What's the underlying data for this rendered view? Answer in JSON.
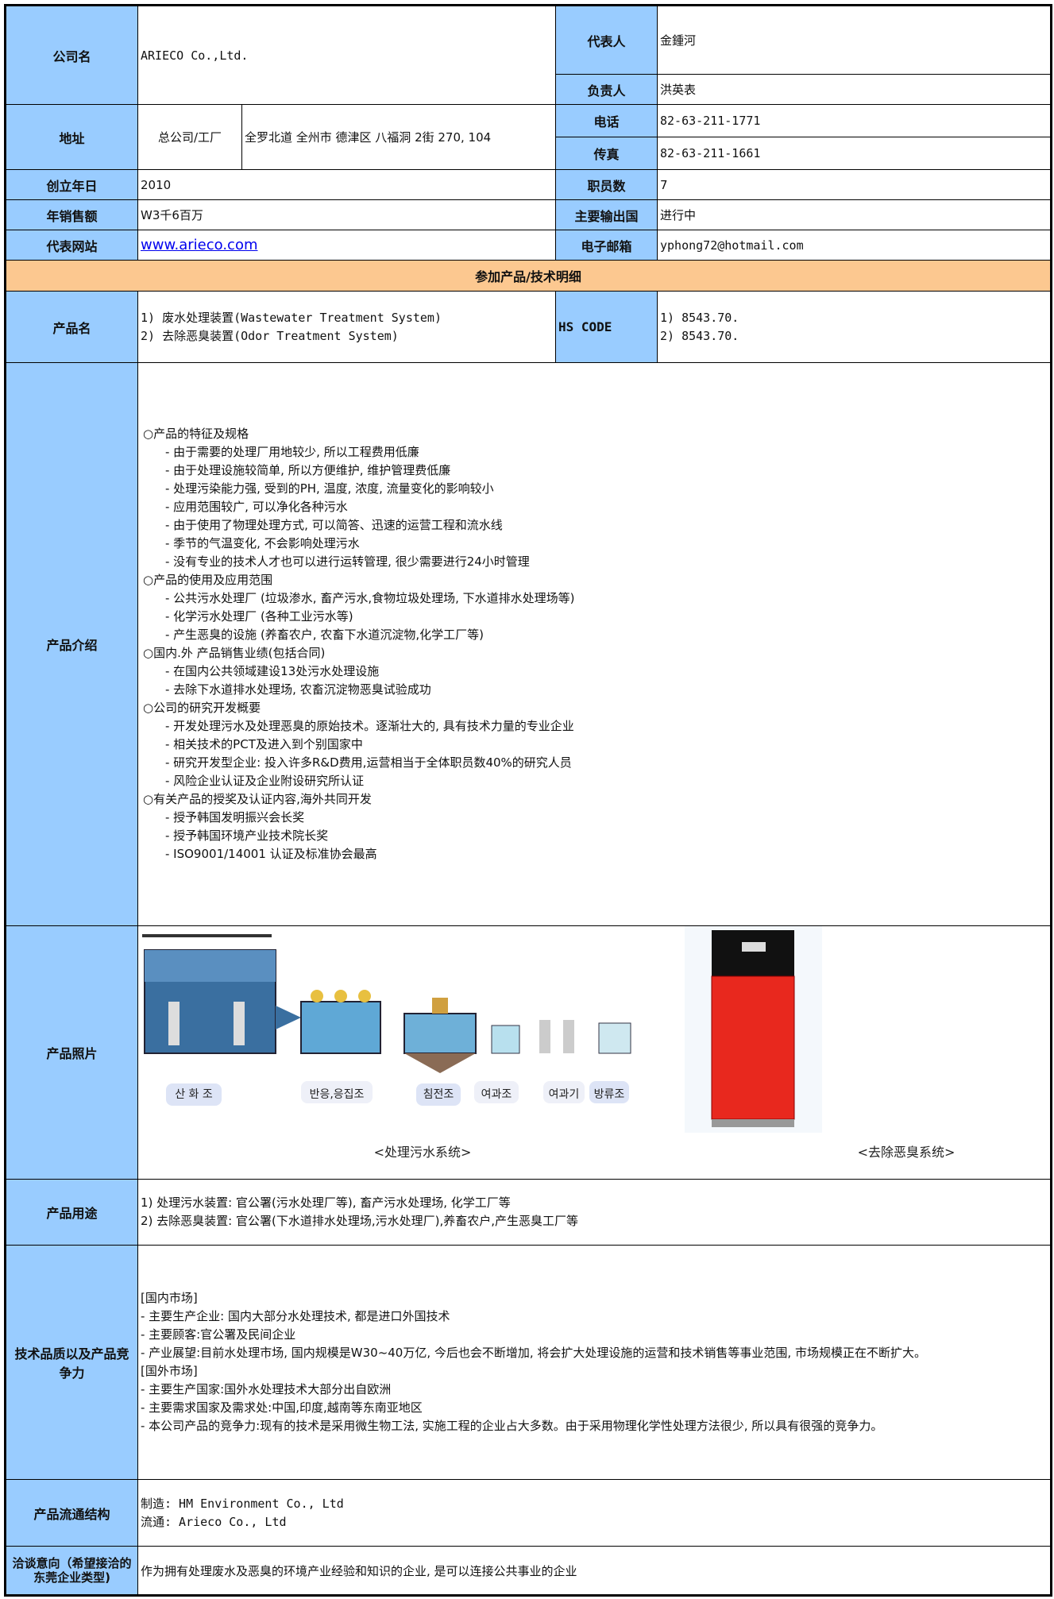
{
  "labels": {
    "company_name": "公司名",
    "representative": "代表人",
    "manager": "负责人",
    "address": "地址",
    "phone": "电话",
    "fax": "传真",
    "founded": "创立年日",
    "employees": "职员数",
    "sales": "年销售额",
    "export": "主要输出国",
    "website": "代表网站",
    "email": "电子邮箱",
    "section": "参加产品/技术明细",
    "product_name": "产品名",
    "hs_code": "HS CODE",
    "intro": "产品介绍",
    "photos": "产品照片",
    "usage": "产品用途",
    "competitiveness": "技术品质以及产品竞争力",
    "distribution": "产品流通结构",
    "intent": "洽谈意向（希望接洽的东莞企业类型)"
  },
  "values": {
    "company_name": "ARIECO Co.,Ltd.",
    "representative": "金鍾河",
    "manager": "洪英表",
    "address_type": "总公司/工厂",
    "address": "全罗北道 全州市 德津区 八福洞 2街 270, 104",
    "phone": "82-63-211-1771",
    "fax": "82-63-211-1661",
    "founded": "2010",
    "employees": "7",
    "sales": "W3千6百万",
    "export": "进行中",
    "website": "www.arieco.com",
    "email": "yphong72@hotmail.com",
    "product_names": [
      "1) 废水处理装置(Wastewater Treatment System)",
      "2) 去除恶臭装置(Odor Treatment System)"
    ],
    "hs_codes": [
      "1) 8543.70.",
      "2) 8543.70."
    ],
    "intro": [
      "○产品的特征及规格",
      "- 由于需要的处理厂用地较少, 所以工程费用低廉",
      "- 由于处理设施较简单, 所以方便维护, 维护管理费低廉",
      "- 处理污染能力强, 受到的PH, 温度, 浓度, 流量变化的影响较小",
      "- 应用范围较广, 可以净化各种污水",
      "- 由于使用了物理处理方式, 可以简答、迅速的运营工程和流水线",
      "- 季节的气温变化, 不会影响处理污水",
      "- 没有专业的技术人才也可以进行运转管理, 很少需要进行24小时管理",
      "○产品的使用及应用范围",
      "- 公共污水处理厂 (垃圾渗水, 畜产污水,食物垃圾处理场, 下水道排水处理场等)",
      "- 化学污水处理厂 (各种工业污水等)",
      "- 产生恶臭的设施 (养畜农户, 农畜下水道沉淀物,化学工厂等)",
      "○国内.外 产品销售业绩(包括合同)",
      "- 在国内公共领域建设13处污水处理设施",
      "- 去除下水道排水处理场, 农畜沉淀物恶臭试验成功",
      "○公司的研究开发概要",
      "- 开发处理污水及处理恶臭的原始技术。逐渐壮大的, 具有技术力量的专业企业",
      "- 相关技术的PCT及进入到个别国家中",
      "- 研究开发型企业: 投入许多R&D费用,运营相当于全体职员数40%的研究人员",
      "- 风险企业认证及企业附设研究所认证",
      "○有关产品的授奖及认证内容,海外共同开发",
      "- 授予韩国发明振兴会长奖",
      "- 授予韩国环境产业技术院长奖",
      "- ISO9001/14001 认证及标准协会最高"
    ],
    "photo_labels": [
      "산 화 조",
      "반응,응집조",
      "침전조",
      "여과조",
      "여과기",
      "방류조"
    ],
    "photo_captions": [
      "<处理污水系统>",
      "<去除恶臭系统>"
    ],
    "usage": [
      "1) 处理污水装置: 官公署(污水处理厂等), 畜产污水处理场, 化学工厂等",
      "2) 去除恶臭装置: 官公署(下水道排水处理场,污水处理厂),养畜农户,产生恶臭工厂等"
    ],
    "competitiveness": [
      "[国内市场]",
      "- 主要生产企业: 国内大部分水处理技术, 都是进口外国技术",
      "- 主要顾客:官公署及民间企业",
      "- 产业展望:目前水处理市场, 国内规模是W30~40万亿, 今后也会不断增加, 将会扩大处理设施的运营和技术销售等事业范围, 市场规模正在不断扩大。",
      "[国外市场]",
      "- 主要生产国家:国外水处理技术大部分出自欧洲",
      "- 主要需求国家及需求处:中国,印度,越南等东南亚地区",
      "- 本公司产品的竞争力:现有的技术是采用微生物工法, 实施工程的企业占大多数。由于采用物理化学性处理方法很少, 所以具有很强的竞争力。"
    ],
    "distribution": [
      "制造: HM Environment Co., Ltd",
      "流通: Arieco Co., Ltd"
    ],
    "intent": "作为拥有处理废水及恶臭的环境产业经验和知识的企业, 是可以连接公共事业的企业"
  }
}
